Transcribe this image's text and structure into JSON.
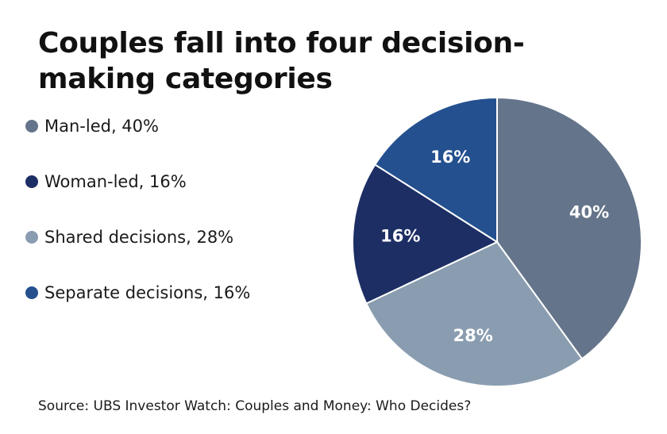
{
  "chart_data": {
    "type": "pie",
    "title": "Couples fall into four decision-making categories",
    "slices": [
      {
        "label": "Man-led",
        "legend": "Man-led, 40%",
        "value": 40,
        "data_label": "40%",
        "color": "#64748a"
      },
      {
        "label": "Shared decisions",
        "legend": "Shared decisions, 28%",
        "value": 28,
        "data_label": "28%",
        "color": "#8a9db0"
      },
      {
        "label": "Woman-led",
        "legend": "Woman-led, 16%",
        "value": 16,
        "data_label": "16%",
        "color": "#1c2e64"
      },
      {
        "label": "Separate decisions",
        "legend": "Separate decisions, 16%",
        "value": 16,
        "data_label": "16%",
        "color": "#24508f"
      }
    ],
    "legend_placement": "left",
    "source": "Source: UBS Investor Watch: Couples and Money: Who Decides?"
  },
  "legend_items": [
    {
      "label": "Man-led, 40%",
      "color": "#64748a"
    },
    {
      "label": "Woman-led, 16%",
      "color": "#1c2e64"
    },
    {
      "label": "Shared decisions, 28%",
      "color": "#8a9db0"
    },
    {
      "label": "Separate decisions, 16%",
      "color": "#24508f"
    }
  ]
}
